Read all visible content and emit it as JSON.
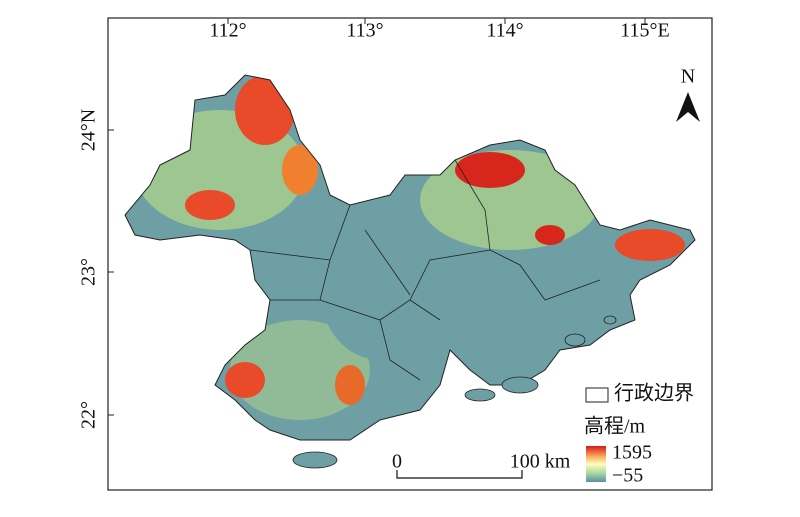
{
  "map": {
    "longitude_labels": [
      "112°",
      "113°",
      "114°",
      "115°E"
    ],
    "latitude_labels": [
      "24°N",
      "23°",
      "22°"
    ],
    "north_label": "N",
    "legend": {
      "boundary_label": "行政边界",
      "elevation_title": "高程/m",
      "elevation_max": "1595",
      "elevation_min": "−55"
    },
    "scale_bar": {
      "start_label": "0",
      "end_label": "100 km"
    }
  }
}
